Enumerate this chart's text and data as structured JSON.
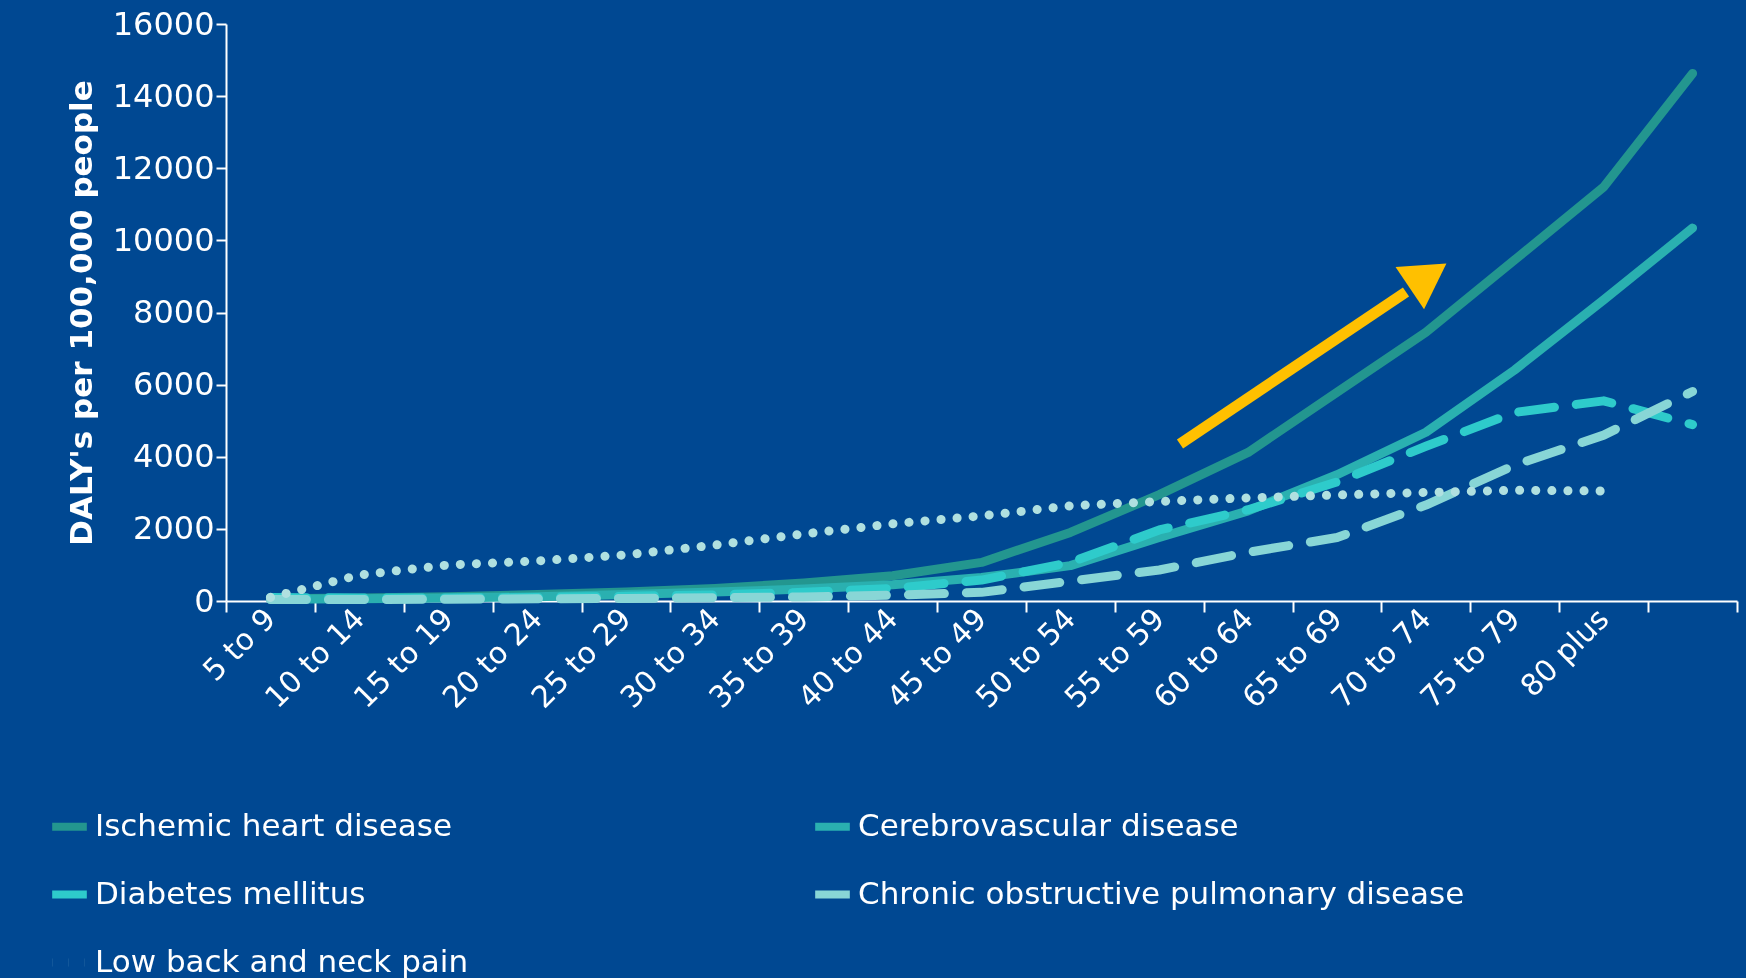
{
  "chart_data": {
    "type": "line",
    "ylabel": "DALY's per 100,000 people",
    "categories": [
      "5 to 9",
      "10 to 14",
      "15 to 19",
      "20 to 24",
      "25 to 29",
      "30 to 34",
      "35 to 39",
      "40 to 44",
      "45 to 49",
      "50 to 54",
      "55 to 59",
      "60 to 64",
      "65 to 69",
      "70 to 74",
      "75 to 79",
      "80 plus",
      null
    ],
    "ylim": [
      0,
      16000
    ],
    "yticks": [
      0,
      2000,
      4000,
      6000,
      8000,
      10000,
      12000,
      14000,
      16000
    ],
    "grid": false,
    "legend": "bottom",
    "marker": "none",
    "series": [
      {
        "name": "Ischemic heart disease",
        "color": "#23968f",
        "line_style": "solid",
        "values": [
          60,
          80,
          120,
          180,
          250,
          350,
          500,
          700,
          1070,
          1900,
          2950,
          4120,
          5790,
          7450,
          9460,
          11480,
          14630
        ]
      },
      {
        "name": "Cerebrovascular disease",
        "color": "#2ab0b0",
        "line_style": "solid",
        "values": [
          50,
          60,
          80,
          120,
          180,
          250,
          330,
          450,
          650,
          980,
          1760,
          2500,
          3500,
          4680,
          6410,
          8350,
          10340
        ]
      },
      {
        "name": "Diabetes mellitus",
        "color": "#2ecbcb",
        "line_style": "dashed",
        "values": [
          100,
          80,
          80,
          100,
          130,
          170,
          240,
          350,
          580,
          1070,
          1970,
          2530,
          3300,
          4290,
          5230,
          5550,
          4890
        ]
      },
      {
        "name": "Chronic obstructive pulmonary disease",
        "color": "#88d6d6",
        "line_style": "dashed",
        "values": [
          40,
          40,
          50,
          60,
          70,
          90,
          110,
          160,
          240,
          550,
          860,
          1350,
          1760,
          2660,
          3770,
          4600,
          5810
        ]
      },
      {
        "name": "Low back and neck pain",
        "color": "#b0e0e0",
        "line_style": "dotted",
        "values": [
          100,
          720,
          1000,
          1110,
          1280,
          1550,
          1860,
          2140,
          2360,
          2640,
          2760,
          2860,
          2940,
          3010,
          3070,
          3050,
          null
        ]
      }
    ]
  }
}
